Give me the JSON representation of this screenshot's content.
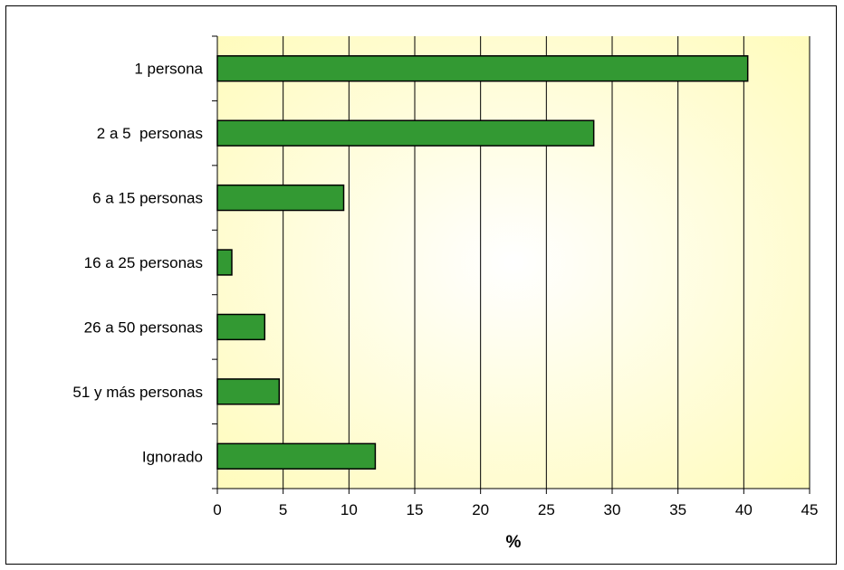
{
  "chart_data": {
    "type": "bar",
    "orientation": "horizontal",
    "categories": [
      "1 persona",
      "2 a 5  personas",
      "6 a 15 personas",
      "16 a 25 personas",
      "26 a 50 personas",
      "51 y más personas",
      "Ignorado"
    ],
    "values": [
      40.3,
      28.6,
      9.6,
      1.1,
      3.6,
      4.7,
      12.0
    ],
    "xlabel": "%",
    "xlim": [
      0,
      45
    ],
    "xticks": [
      "0",
      "5",
      "10",
      "15",
      "20",
      "25",
      "30",
      "35",
      "40",
      "45"
    ],
    "grid": "vertical",
    "colors": {
      "bar": "#339933",
      "bar_edge": "#000000",
      "plot_bg_center": "#ffffff",
      "plot_bg_edge": "#fffbb8"
    }
  }
}
